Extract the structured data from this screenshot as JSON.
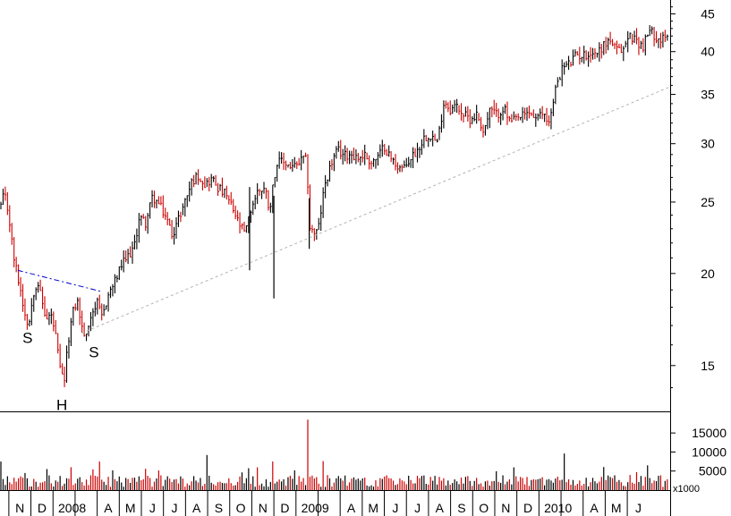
{
  "chart_data": [
    {
      "type": "ohlc",
      "y_scale": "log",
      "ylim": [
        13,
        47
      ],
      "y_ticks": [
        15,
        20,
        25,
        30,
        35,
        40,
        45
      ],
      "x_ticks": [
        {
          "label": "N",
          "month": 0
        },
        {
          "label": "D",
          "month": 1
        },
        {
          "label": "2008",
          "month": 2
        },
        {
          "label": "",
          "month": 3
        },
        {
          "label": "A",
          "month": 4
        },
        {
          "label": "M",
          "month": 5
        },
        {
          "label": "J",
          "month": 6
        },
        {
          "label": "J",
          "month": 7
        },
        {
          "label": "A",
          "month": 8
        },
        {
          "label": "S",
          "month": 9
        },
        {
          "label": "O",
          "month": 10
        },
        {
          "label": "N",
          "month": 11
        },
        {
          "label": "D",
          "month": 12
        },
        {
          "label": "2009",
          "month": 13
        },
        {
          "label": "",
          "month": 14
        },
        {
          "label": "A",
          "month": 15
        },
        {
          "label": "M",
          "month": 16
        },
        {
          "label": "J",
          "month": 17
        },
        {
          "label": "J",
          "month": 18
        },
        {
          "label": "A",
          "month": 19
        },
        {
          "label": "S",
          "month": 20
        },
        {
          "label": "O",
          "month": 21
        },
        {
          "label": "N",
          "month": 22
        },
        {
          "label": "D",
          "month": 23
        },
        {
          "label": "2010",
          "month": 24
        },
        {
          "label": "",
          "month": 25
        },
        {
          "label": "A",
          "month": 26
        },
        {
          "label": "M",
          "month": 27
        },
        {
          "label": "J",
          "month": 28
        }
      ],
      "x_range_months": [
        -0.9,
        29.4
      ],
      "price_path": [
        [
          -0.9,
          24.5
        ],
        [
          -0.7,
          25.6
        ],
        [
          -0.5,
          24.0
        ],
        [
          -0.3,
          21.2
        ],
        [
          0.0,
          19.2
        ],
        [
          0.2,
          17.8
        ],
        [
          0.4,
          17.0
        ],
        [
          0.6,
          18.8
        ],
        [
          0.8,
          19.6
        ],
        [
          1.0,
          18.3
        ],
        [
          1.2,
          17.3
        ],
        [
          1.4,
          17.6
        ],
        [
          1.6,
          16.6
        ],
        [
          1.8,
          14.9
        ],
        [
          2.0,
          14.2
        ],
        [
          2.2,
          16.3
        ],
        [
          2.4,
          17.7
        ],
        [
          2.6,
          18.4
        ],
        [
          2.8,
          16.9
        ],
        [
          3.0,
          16.3
        ],
        [
          3.2,
          17.6
        ],
        [
          3.5,
          18.2
        ],
        [
          3.7,
          17.4
        ],
        [
          4.0,
          18.7
        ],
        [
          4.3,
          19.5
        ],
        [
          4.6,
          20.5
        ],
        [
          4.9,
          21.1
        ],
        [
          5.2,
          21.8
        ],
        [
          5.4,
          23.9
        ],
        [
          5.7,
          23.4
        ],
        [
          6.0,
          25.4
        ],
        [
          6.3,
          24.8
        ],
        [
          6.6,
          23.9
        ],
        [
          6.9,
          22.6
        ],
        [
          7.2,
          23.8
        ],
        [
          7.5,
          25.2
        ],
        [
          7.8,
          26.7
        ],
        [
          8.1,
          27.2
        ],
        [
          8.4,
          26.4
        ],
        [
          8.7,
          26.9
        ],
        [
          9.0,
          26.1
        ],
        [
          9.3,
          25.6
        ],
        [
          9.6,
          24.6
        ],
        [
          9.9,
          23.4
        ],
        [
          10.2,
          22.6
        ],
        [
          10.5,
          24.7
        ],
        [
          10.8,
          26.0
        ],
        [
          11.1,
          26.1
        ],
        [
          11.3,
          24.4
        ],
        [
          11.6,
          28.1
        ],
        [
          11.9,
          28.4
        ],
        [
          12.2,
          28.0
        ],
        [
          12.5,
          27.9
        ],
        [
          12.8,
          28.6
        ],
        [
          13.0,
          28.4
        ],
        [
          13.1,
          23.2
        ],
        [
          13.3,
          22.7
        ],
        [
          13.5,
          22.8
        ],
        [
          13.8,
          26.4
        ],
        [
          14.1,
          28.2
        ],
        [
          14.4,
          29.4
        ],
        [
          14.7,
          28.9
        ],
        [
          15.0,
          29.1
        ],
        [
          15.3,
          28.7
        ],
        [
          15.6,
          29.0
        ],
        [
          15.9,
          28.3
        ],
        [
          16.2,
          28.7
        ],
        [
          16.5,
          29.8
        ],
        [
          16.8,
          28.6
        ],
        [
          17.1,
          28.0
        ],
        [
          17.4,
          27.7
        ],
        [
          17.7,
          28.7
        ],
        [
          18.0,
          29.4
        ],
        [
          18.3,
          30.6
        ],
        [
          18.6,
          30.9
        ],
        [
          18.9,
          30.0
        ],
        [
          19.2,
          34.3
        ],
        [
          19.5,
          33.4
        ],
        [
          19.8,
          33.8
        ],
        [
          20.1,
          32.8
        ],
        [
          20.4,
          32.4
        ],
        [
          20.7,
          32.9
        ],
        [
          21.0,
          31.1
        ],
        [
          21.3,
          33.4
        ],
        [
          21.6,
          32.8
        ],
        [
          21.9,
          33.6
        ],
        [
          22.2,
          32.0
        ],
        [
          22.5,
          32.4
        ],
        [
          22.8,
          32.7
        ],
        [
          23.1,
          33.1
        ],
        [
          23.4,
          32.3
        ],
        [
          23.7,
          33.1
        ],
        [
          23.9,
          32.1
        ],
        [
          24.1,
          33.3
        ],
        [
          24.3,
          36.3
        ],
        [
          24.6,
          38.2
        ],
        [
          24.9,
          38.5
        ],
        [
          25.2,
          39.6
        ],
        [
          25.5,
          39.5
        ],
        [
          25.8,
          39.8
        ],
        [
          26.1,
          39.8
        ],
        [
          26.4,
          40.7
        ],
        [
          26.7,
          41.6
        ],
        [
          27.0,
          40.1
        ],
        [
          27.3,
          40.2
        ],
        [
          27.6,
          42.1
        ],
        [
          27.9,
          41.5
        ],
        [
          28.2,
          40.6
        ],
        [
          28.5,
          42.7
        ],
        [
          28.8,
          42.0
        ],
        [
          29.0,
          41.5
        ],
        [
          29.2,
          41.6
        ],
        [
          29.4,
          41.7
        ]
      ],
      "spikes": [
        {
          "month": 11.5,
          "high": 25.5,
          "low": 18.5
        },
        {
          "month": 10.4,
          "high": 26.2,
          "low": 20.2
        },
        {
          "month": 13.1,
          "high": 25.3,
          "low": 21.6
        }
      ],
      "trendline": {
        "start": [
          2.8,
          16.6
        ],
        "end": [
          29.4,
          35.8
        ]
      },
      "neckline": {
        "start": [
          -0.1,
          20.2
        ],
        "end": [
          3.7,
          18.9
        ]
      },
      "annotations": [
        {
          "text": "S",
          "month": 0.35,
          "price": 16.1
        },
        {
          "text": "H",
          "month": 1.9,
          "price": 13.05
        },
        {
          "text": "S",
          "month": 3.35,
          "price": 15.4
        }
      ],
      "colors": {
        "up_bar": "#000000",
        "down_bar": "#cc0000",
        "trendline": "#b3b3b3",
        "neckline": "#0000cc",
        "axis": "#000000"
      }
    },
    {
      "type": "bar",
      "name": "volume",
      "unit_label": "x1000",
      "ylim": [
        0,
        19500
      ],
      "y_ticks": [
        {
          "value": 5000,
          "label": "5000"
        },
        {
          "value": 10000,
          "label": "10000"
        },
        {
          "value": 15000,
          "label": "15000"
        }
      ],
      "typical_volume": 3400,
      "peaks": [
        {
          "month": 13.0,
          "value": 18500
        },
        {
          "month": 8.5,
          "value": 9200
        },
        {
          "month": 24.6,
          "value": 9600
        },
        {
          "month": 11.4,
          "value": 7500
        },
        {
          "month": 13.7,
          "value": 7600
        },
        {
          "month": 3.6,
          "value": 7500
        },
        {
          "month": -0.9,
          "value": 7500
        },
        {
          "month": 28.4,
          "value": 6500
        }
      ],
      "colors": {
        "up_bar": "#000000",
        "down_bar": "#cc0000"
      }
    }
  ]
}
